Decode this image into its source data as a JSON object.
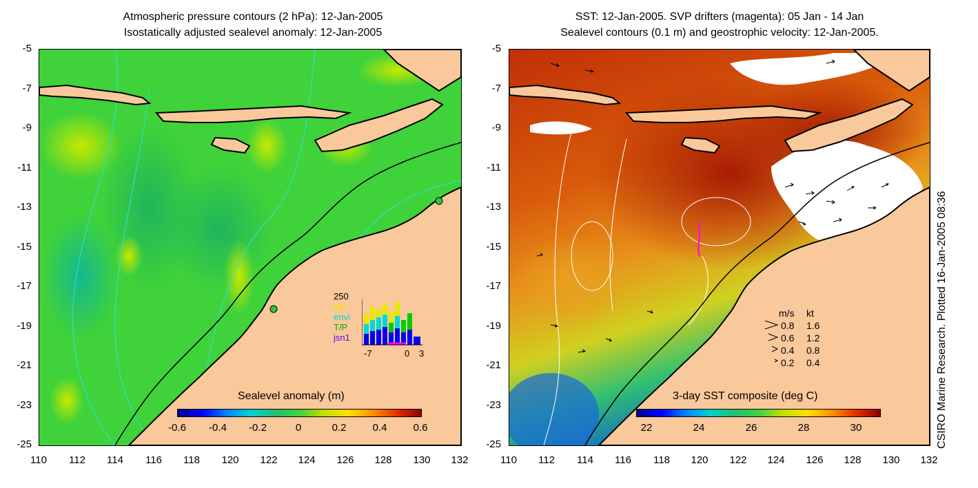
{
  "left_panel": {
    "title_line1": "Atmospheric pressure contours (2 hPa): 12-Jan-2005",
    "title_line2": "Isostatically adjusted sealevel anomaly: 12-Jan-2005",
    "colorbar_title": "Sealevel anomaly (m)",
    "colorbar_ticks": [
      "-0.6",
      "-0.4",
      "-0.2",
      "0",
      "0.2",
      "0.4",
      "0.6"
    ],
    "histogram": {
      "ymax_label": "250",
      "legend": [
        "gfo",
        "envi",
        "T/P",
        "jsn1"
      ],
      "legend_colors": [
        "#e8e800",
        "#00d8d8",
        "#00cc00",
        "#6a00ff"
      ],
      "x_ticks": [
        "-7",
        "0",
        "3"
      ]
    }
  },
  "right_panel": {
    "title_line1": "SST: 12-Jan-2005. SVP drifters (magenta): 05 Jan - 14 Jan",
    "title_line2": "Sealevel contours (0.1 m) and geostrophic velocity: 12-Jan-2005.",
    "colorbar_title": "3-day SST composite (deg C)",
    "colorbar_ticks": [
      "22",
      "24",
      "26",
      "28",
      "30"
    ],
    "velocity_legend": {
      "header_ms": "m/s",
      "header_kt": "kt",
      "rows": [
        {
          "ms": "0.8",
          "kt": "1.6"
        },
        {
          "ms": "0.6",
          "kt": "1.2"
        },
        {
          "ms": "0.4",
          "kt": "0.8"
        },
        {
          "ms": "0.2",
          "kt": "0.4"
        }
      ]
    }
  },
  "axes": {
    "y_ticks": [
      "-5",
      "-7",
      "-9",
      "-11",
      "-13",
      "-15",
      "-17",
      "-19",
      "-21",
      "-23",
      "-25"
    ],
    "x_ticks": [
      "110",
      "112",
      "114",
      "116",
      "118",
      "120",
      "122",
      "124",
      "126",
      "128",
      "130",
      "132"
    ]
  },
  "credit": "CSIRO Marine Research. Plotted 16-Jan-2005 08:36",
  "colors": {
    "land": "#f9c89b",
    "sla_background": "#3fd23a",
    "sst_background": "#c9400a"
  }
}
